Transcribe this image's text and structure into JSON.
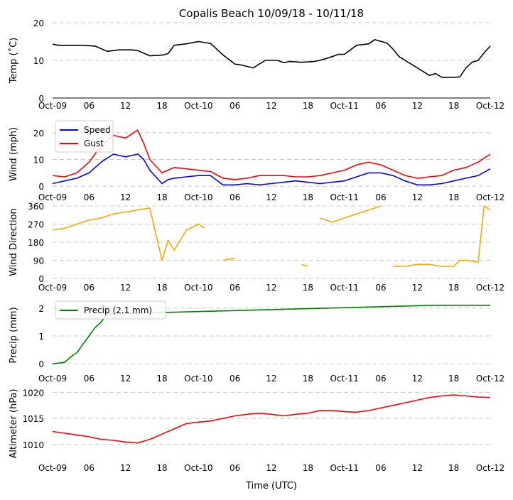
{
  "title": "Copalis Beach 10/09/18 - 10/11/18",
  "x_label": "Time (UTC)",
  "x_tick_labels": [
    "Oct-09",
    "06",
    "12",
    "18",
    "Oct-10",
    "06",
    "12",
    "18",
    "Oct-11",
    "06",
    "12",
    "18",
    "Oct-12"
  ],
  "chart_data": [
    {
      "type": "line",
      "id": "temp",
      "ylabel": "Temp ($^\\circ$C)",
      "ylabel_display": "Temp (˚C)",
      "ylim": [
        0,
        20
      ],
      "yticks": [
        0,
        10,
        20
      ],
      "x_unit": "hours since Oct-09 00:00 UTC",
      "series": [
        {
          "name": "Temp",
          "color": "#000000",
          "x": [
            0,
            1,
            3,
            5,
            7,
            9,
            11,
            13,
            14,
            16,
            18,
            19,
            20,
            22,
            24,
            26,
            28,
            30,
            31,
            33,
            35,
            37,
            38,
            39,
            41,
            43,
            44,
            46,
            47,
            48,
            50,
            52,
            53,
            55,
            56,
            57,
            58,
            59,
            60,
            61,
            62,
            63,
            64,
            65,
            66,
            67,
            68,
            69,
            70,
            71,
            72
          ],
          "y": [
            14.3,
            14,
            14,
            14,
            13.8,
            12.4,
            12.8,
            12.8,
            12.6,
            11.2,
            11.4,
            11.8,
            14,
            14.4,
            15,
            14.5,
            11.5,
            9,
            8.8,
            8,
            10,
            10,
            9.4,
            9.7,
            9.5,
            9.7,
            10,
            11,
            11.6,
            11.6,
            14,
            14.4,
            15.5,
            14.6,
            13,
            11,
            10,
            9,
            8,
            7,
            6,
            6.5,
            5.5,
            5.5,
            5.5,
            5.6,
            8,
            9.5,
            10,
            12,
            13.8
          ]
        }
      ]
    },
    {
      "type": "line",
      "id": "wind",
      "ylabel": "Wind (mph)",
      "ylim": [
        -1,
        25
      ],
      "yticks": [
        0,
        10,
        20
      ],
      "legend": "upper-left",
      "series": [
        {
          "name": "Speed",
          "color": "#0000ff",
          "x": [
            0,
            2,
            4,
            6,
            8,
            10,
            12,
            14,
            15,
            16,
            18,
            19,
            20,
            22,
            24,
            26,
            28,
            30,
            32,
            34,
            36,
            38,
            40,
            42,
            44,
            46,
            48,
            50,
            52,
            54,
            56,
            58,
            60,
            62,
            64,
            66,
            68,
            70,
            72
          ],
          "y": [
            1,
            2,
            3,
            5,
            9,
            12,
            11,
            12,
            10,
            6,
            1,
            2.5,
            3,
            3.5,
            4,
            4,
            0.5,
            0.5,
            1,
            0.5,
            1,
            1.5,
            2,
            1.5,
            1,
            1.5,
            2,
            3.5,
            5,
            5,
            4,
            2,
            0.5,
            0.5,
            1,
            2,
            3,
            4,
            6.5
          ]
        },
        {
          "name": "Gust",
          "color": "#ff0000",
          "x": [
            0,
            2,
            4,
            6,
            8,
            10,
            12,
            14,
            15,
            16,
            18,
            19,
            20,
            22,
            24,
            26,
            28,
            30,
            32,
            34,
            36,
            38,
            40,
            42,
            44,
            46,
            48,
            50,
            52,
            54,
            56,
            58,
            60,
            62,
            64,
            66,
            68,
            70,
            72
          ],
          "y": [
            4,
            3.5,
            5,
            9,
            15,
            19,
            18,
            21,
            16,
            10,
            5,
            6,
            7,
            6.5,
            6,
            5.5,
            3,
            2.5,
            3,
            4,
            4,
            4,
            3.5,
            3.5,
            4,
            5,
            6,
            8,
            9,
            8,
            6,
            4,
            3,
            3.5,
            4,
            6,
            7,
            9,
            12
          ]
        }
      ]
    },
    {
      "type": "line",
      "id": "direction",
      "ylabel": "Wind Direction",
      "ylim": [
        0,
        360
      ],
      "yticks": [
        0,
        90,
        180,
        270,
        360
      ],
      "series": [
        {
          "name": "Direction",
          "color": "#ffa500",
          "x": [
            0,
            2,
            4,
            6,
            8,
            10,
            12,
            14,
            16,
            18,
            19,
            20,
            22,
            24,
            25,
            null,
            28,
            30,
            null,
            41,
            42,
            null,
            44,
            46,
            48,
            50,
            52,
            54,
            null,
            56,
            58,
            60,
            62,
            64,
            66,
            67,
            68,
            70,
            71,
            72
          ],
          "y": [
            240,
            250,
            270,
            290,
            300,
            320,
            330,
            340,
            350,
            90,
            190,
            140,
            240,
            270,
            250,
            null,
            90,
            100,
            null,
            70,
            60,
            null,
            300,
            280,
            300,
            320,
            340,
            360,
            null,
            60,
            60,
            70,
            70,
            60,
            60,
            90,
            90,
            80,
            360,
            340
          ]
        }
      ]
    },
    {
      "type": "line",
      "id": "precip",
      "ylabel": "Precip (mm)",
      "ylim": [
        -0.25,
        2.3
      ],
      "yticks": [
        0,
        1,
        2
      ],
      "legend": "upper-left",
      "series": [
        {
          "name": "Precip (2.1 mm)",
          "color": "#008000",
          "x": [
            0,
            2,
            3,
            4,
            5,
            6,
            7,
            8,
            9,
            10,
            11,
            63,
            72
          ],
          "y": [
            0,
            0.05,
            0.25,
            0.4,
            0.7,
            1.0,
            1.3,
            1.5,
            1.8,
            1.8,
            1.8,
            2.1,
            2.1
          ]
        }
      ]
    },
    {
      "type": "line",
      "id": "altimeter",
      "ylabel": "Altimeter (hPa)",
      "ylim": [
        1007,
        1021
      ],
      "yticks": [
        1010,
        1015,
        1020
      ],
      "series": [
        {
          "name": "Altimeter",
          "color": "#ff0000",
          "x": [
            0,
            3,
            6,
            8,
            10,
            12,
            14,
            16,
            18,
            20,
            22,
            24,
            26,
            28,
            30,
            32,
            34,
            36,
            38,
            40,
            42,
            44,
            46,
            48,
            50,
            52,
            54,
            56,
            58,
            60,
            62,
            64,
            66,
            68,
            70,
            72
          ],
          "y": [
            1012.5,
            1012,
            1011.5,
            1011,
            1010.8,
            1010.5,
            1010.3,
            1011,
            1012,
            1013,
            1014,
            1014.3,
            1014.5,
            1015,
            1015.5,
            1015.8,
            1016,
            1015.8,
            1015.5,
            1015.8,
            1016,
            1016.5,
            1016.5,
            1016.3,
            1016.2,
            1016.5,
            1017,
            1017.5,
            1018,
            1018.5,
            1019,
            1019.3,
            1019.5,
            1019.3,
            1019.1,
            1019
          ]
        }
      ]
    }
  ]
}
